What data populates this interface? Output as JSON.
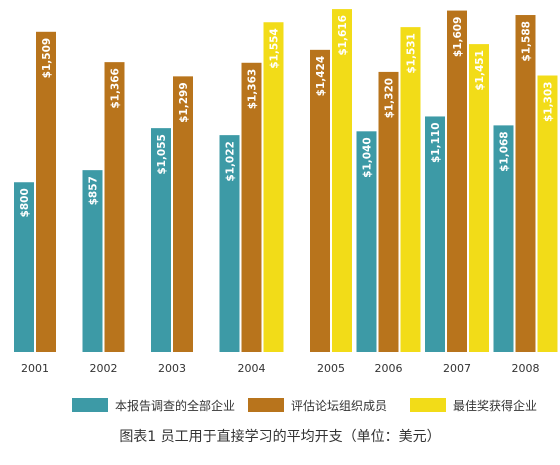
{
  "chart_data": {
    "type": "bar",
    "categories": [
      "2001",
      "2002",
      "2003",
      "2004",
      "2005",
      "2006",
      "2007",
      "2008"
    ],
    "series": [
      {
        "name": "本报告调查的全部企业",
        "color": "#3d9aa6",
        "values": [
          800,
          857,
          1055,
          1022,
          null,
          1040,
          1110,
          1068
        ],
        "labels": [
          "$800",
          "$857",
          "$1,055",
          "$1,022",
          "",
          "$1,040",
          "$1,110",
          "$1,068"
        ]
      },
      {
        "name": "评估论坛组织成员",
        "color": "#b8741c",
        "values": [
          1509,
          1366,
          1299,
          1363,
          1424,
          1320,
          1609,
          1588
        ],
        "labels": [
          "$1,509",
          "$1,366",
          "$1,299",
          "$1,363",
          "$1,424",
          "$1,320",
          "$1,609",
          "$1,588"
        ]
      },
      {
        "name": "最佳奖获得企业",
        "color": "#f2dc18",
        "values": [
          null,
          null,
          null,
          1554,
          1616,
          1531,
          1451,
          1303
        ],
        "labels": [
          "",
          "",
          "",
          "$1,554",
          "$1,616",
          "$1,531",
          "$1,451",
          "$1,303"
        ]
      }
    ],
    "ylim": [
      0,
      1640
    ],
    "grid": false,
    "legend_position": "bottom",
    "caption": "图表1  员工用于直接学习的平均开支（单位：美元）"
  }
}
